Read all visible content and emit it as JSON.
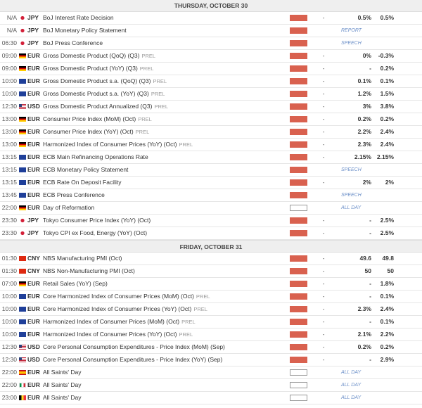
{
  "days": [
    {
      "title": "THURSDAY, OCTOBER 30",
      "rows": [
        {
          "time": "N/A",
          "flag": "jp",
          "currency": "JPY",
          "event": "BoJ Interest Rate Decision",
          "impact": "high",
          "actual": "-",
          "consensus": "0.5%",
          "previous": "0.5%"
        },
        {
          "time": "N/A",
          "flag": "jp",
          "currency": "JPY",
          "event": "BoJ Monetary Policy Statement",
          "impact": "high",
          "label": "REPORT"
        },
        {
          "time": "06:30",
          "flag": "jp",
          "currency": "JPY",
          "event": "BoJ Press Conference",
          "impact": "high",
          "label": "SPEECH"
        },
        {
          "time": "09:00",
          "flag": "de",
          "currency": "EUR",
          "event": "Gross Domestic Product (QoQ) (Q3)",
          "tag": "PREL",
          "impact": "high",
          "actual": "-",
          "consensus": "0%",
          "previous": "-0.3%"
        },
        {
          "time": "09:00",
          "flag": "de",
          "currency": "EUR",
          "event": "Gross Domestic Product (YoY) (Q3)",
          "tag": "PREL",
          "impact": "high",
          "actual": "-",
          "consensus": "-",
          "previous": "0.2%"
        },
        {
          "time": "10:00",
          "flag": "eu",
          "currency": "EUR",
          "event": "Gross Domestic Product s.a. (QoQ) (Q3)",
          "tag": "PREL",
          "impact": "high",
          "actual": "-",
          "consensus": "0.1%",
          "previous": "0.1%"
        },
        {
          "time": "10:00",
          "flag": "eu",
          "currency": "EUR",
          "event": "Gross Domestic Product s.a. (YoY) (Q3)",
          "tag": "PREL",
          "impact": "high",
          "actual": "-",
          "consensus": "1.2%",
          "previous": "1.5%"
        },
        {
          "time": "12:30",
          "flag": "us",
          "currency": "USD",
          "event": "Gross Domestic Product Annualized (Q3)",
          "tag": "PREL",
          "impact": "high",
          "actual": "-",
          "consensus": "3%",
          "previous": "3.8%"
        },
        {
          "time": "13:00",
          "flag": "de",
          "currency": "EUR",
          "event": "Consumer Price Index (MoM) (Oct)",
          "tag": "PREL",
          "impact": "high",
          "actual": "-",
          "consensus": "0.2%",
          "previous": "0.2%"
        },
        {
          "time": "13:00",
          "flag": "de",
          "currency": "EUR",
          "event": "Consumer Price Index (YoY) (Oct)",
          "tag": "PREL",
          "impact": "high",
          "actual": "-",
          "consensus": "2.2%",
          "previous": "2.4%"
        },
        {
          "time": "13:00",
          "flag": "de",
          "currency": "EUR",
          "event": "Harmonized Index of Consumer Prices (YoY) (Oct)",
          "tag": "PREL",
          "impact": "high",
          "actual": "-",
          "consensus": "2.3%",
          "previous": "2.4%"
        },
        {
          "time": "13:15",
          "flag": "eu",
          "currency": "EUR",
          "event": "ECB Main Refinancing Operations Rate",
          "impact": "high",
          "actual": "-",
          "consensus": "2.15%",
          "previous": "2.15%"
        },
        {
          "time": "13:15",
          "flag": "eu",
          "currency": "EUR",
          "event": "ECB Monetary Policy Statement",
          "impact": "high",
          "label": "SPEECH"
        },
        {
          "time": "13:15",
          "flag": "eu",
          "currency": "EUR",
          "event": "ECB Rate On Deposit Facility",
          "impact": "high",
          "actual": "-",
          "consensus": "2%",
          "previous": "2%"
        },
        {
          "time": "13:45",
          "flag": "eu",
          "currency": "EUR",
          "event": "ECB Press Conference",
          "impact": "high",
          "label": "SPEECH"
        },
        {
          "time": "22:00",
          "flag": "de",
          "currency": "EUR",
          "event": "Day of Reformation",
          "impact": "low",
          "label": "ALL DAY"
        },
        {
          "time": "23:30",
          "flag": "jp",
          "currency": "JPY",
          "event": "Tokyo Consumer Price Index (YoY) (Oct)",
          "impact": "high",
          "actual": "-",
          "consensus": "-",
          "previous": "2.5%"
        },
        {
          "time": "23:30",
          "flag": "jp",
          "currency": "JPY",
          "event": "Tokyo CPI ex Food, Energy (YoY) (Oct)",
          "impact": "high",
          "actual": "-",
          "consensus": "-",
          "previous": "2.5%"
        }
      ]
    },
    {
      "title": "FRIDAY, OCTOBER 31",
      "rows": [
        {
          "time": "01:30",
          "flag": "cn",
          "currency": "CNY",
          "event": "NBS Manufacturing PMI (Oct)",
          "impact": "high",
          "actual": "-",
          "consensus": "49.6",
          "previous": "49.8"
        },
        {
          "time": "01:30",
          "flag": "cn",
          "currency": "CNY",
          "event": "NBS Non-Manufacturing PMI (Oct)",
          "impact": "high",
          "actual": "-",
          "consensus": "50",
          "previous": "50"
        },
        {
          "time": "07:00",
          "flag": "de",
          "currency": "EUR",
          "event": "Retail Sales (YoY) (Sep)",
          "impact": "high",
          "actual": "-",
          "consensus": "-",
          "previous": "1.8%"
        },
        {
          "time": "10:00",
          "flag": "eu",
          "currency": "EUR",
          "event": "Core Harmonized Index of Consumer Prices (MoM) (Oct)",
          "tag": "PREL",
          "impact": "high",
          "actual": "-",
          "consensus": "-",
          "previous": "0.1%"
        },
        {
          "time": "10:00",
          "flag": "eu",
          "currency": "EUR",
          "event": "Core Harmonized Index of Consumer Prices (YoY) (Oct)",
          "tag": "PREL",
          "impact": "high",
          "actual": "-",
          "consensus": "2.3%",
          "previous": "2.4%"
        },
        {
          "time": "10:00",
          "flag": "eu",
          "currency": "EUR",
          "event": "Harmonized Index of Consumer Prices (MoM) (Oct)",
          "tag": "PREL",
          "impact": "high",
          "actual": "-",
          "consensus": "-",
          "previous": "0.1%"
        },
        {
          "time": "10:00",
          "flag": "eu",
          "currency": "EUR",
          "event": "Harmonized Index of Consumer Prices (YoY) (Oct)",
          "tag": "PREL",
          "impact": "high",
          "actual": "-",
          "consensus": "2.1%",
          "previous": "2.2%"
        },
        {
          "time": "12:30",
          "flag": "us",
          "currency": "USD",
          "event": "Core Personal Consumption Expenditures - Price Index (MoM) (Sep)",
          "impact": "high",
          "actual": "-",
          "consensus": "0.2%",
          "previous": "0.2%"
        },
        {
          "time": "12:30",
          "flag": "us",
          "currency": "USD",
          "event": "Core Personal Consumption Expenditures - Price Index (YoY) (Sep)",
          "impact": "high",
          "actual": "-",
          "consensus": "-",
          "previous": "2.9%"
        },
        {
          "time": "22:00",
          "flag": "es",
          "currency": "EUR",
          "event": "All Saints' Day",
          "impact": "low",
          "label": "ALL DAY"
        },
        {
          "time": "22:00",
          "flag": "it",
          "currency": "EUR",
          "event": "All Saints' Day",
          "impact": "low",
          "label": "ALL DAY"
        },
        {
          "time": "23:00",
          "flag": "be",
          "currency": "EUR",
          "event": "All Saints' Day",
          "impact": "low",
          "label": "ALL DAY"
        }
      ]
    }
  ]
}
